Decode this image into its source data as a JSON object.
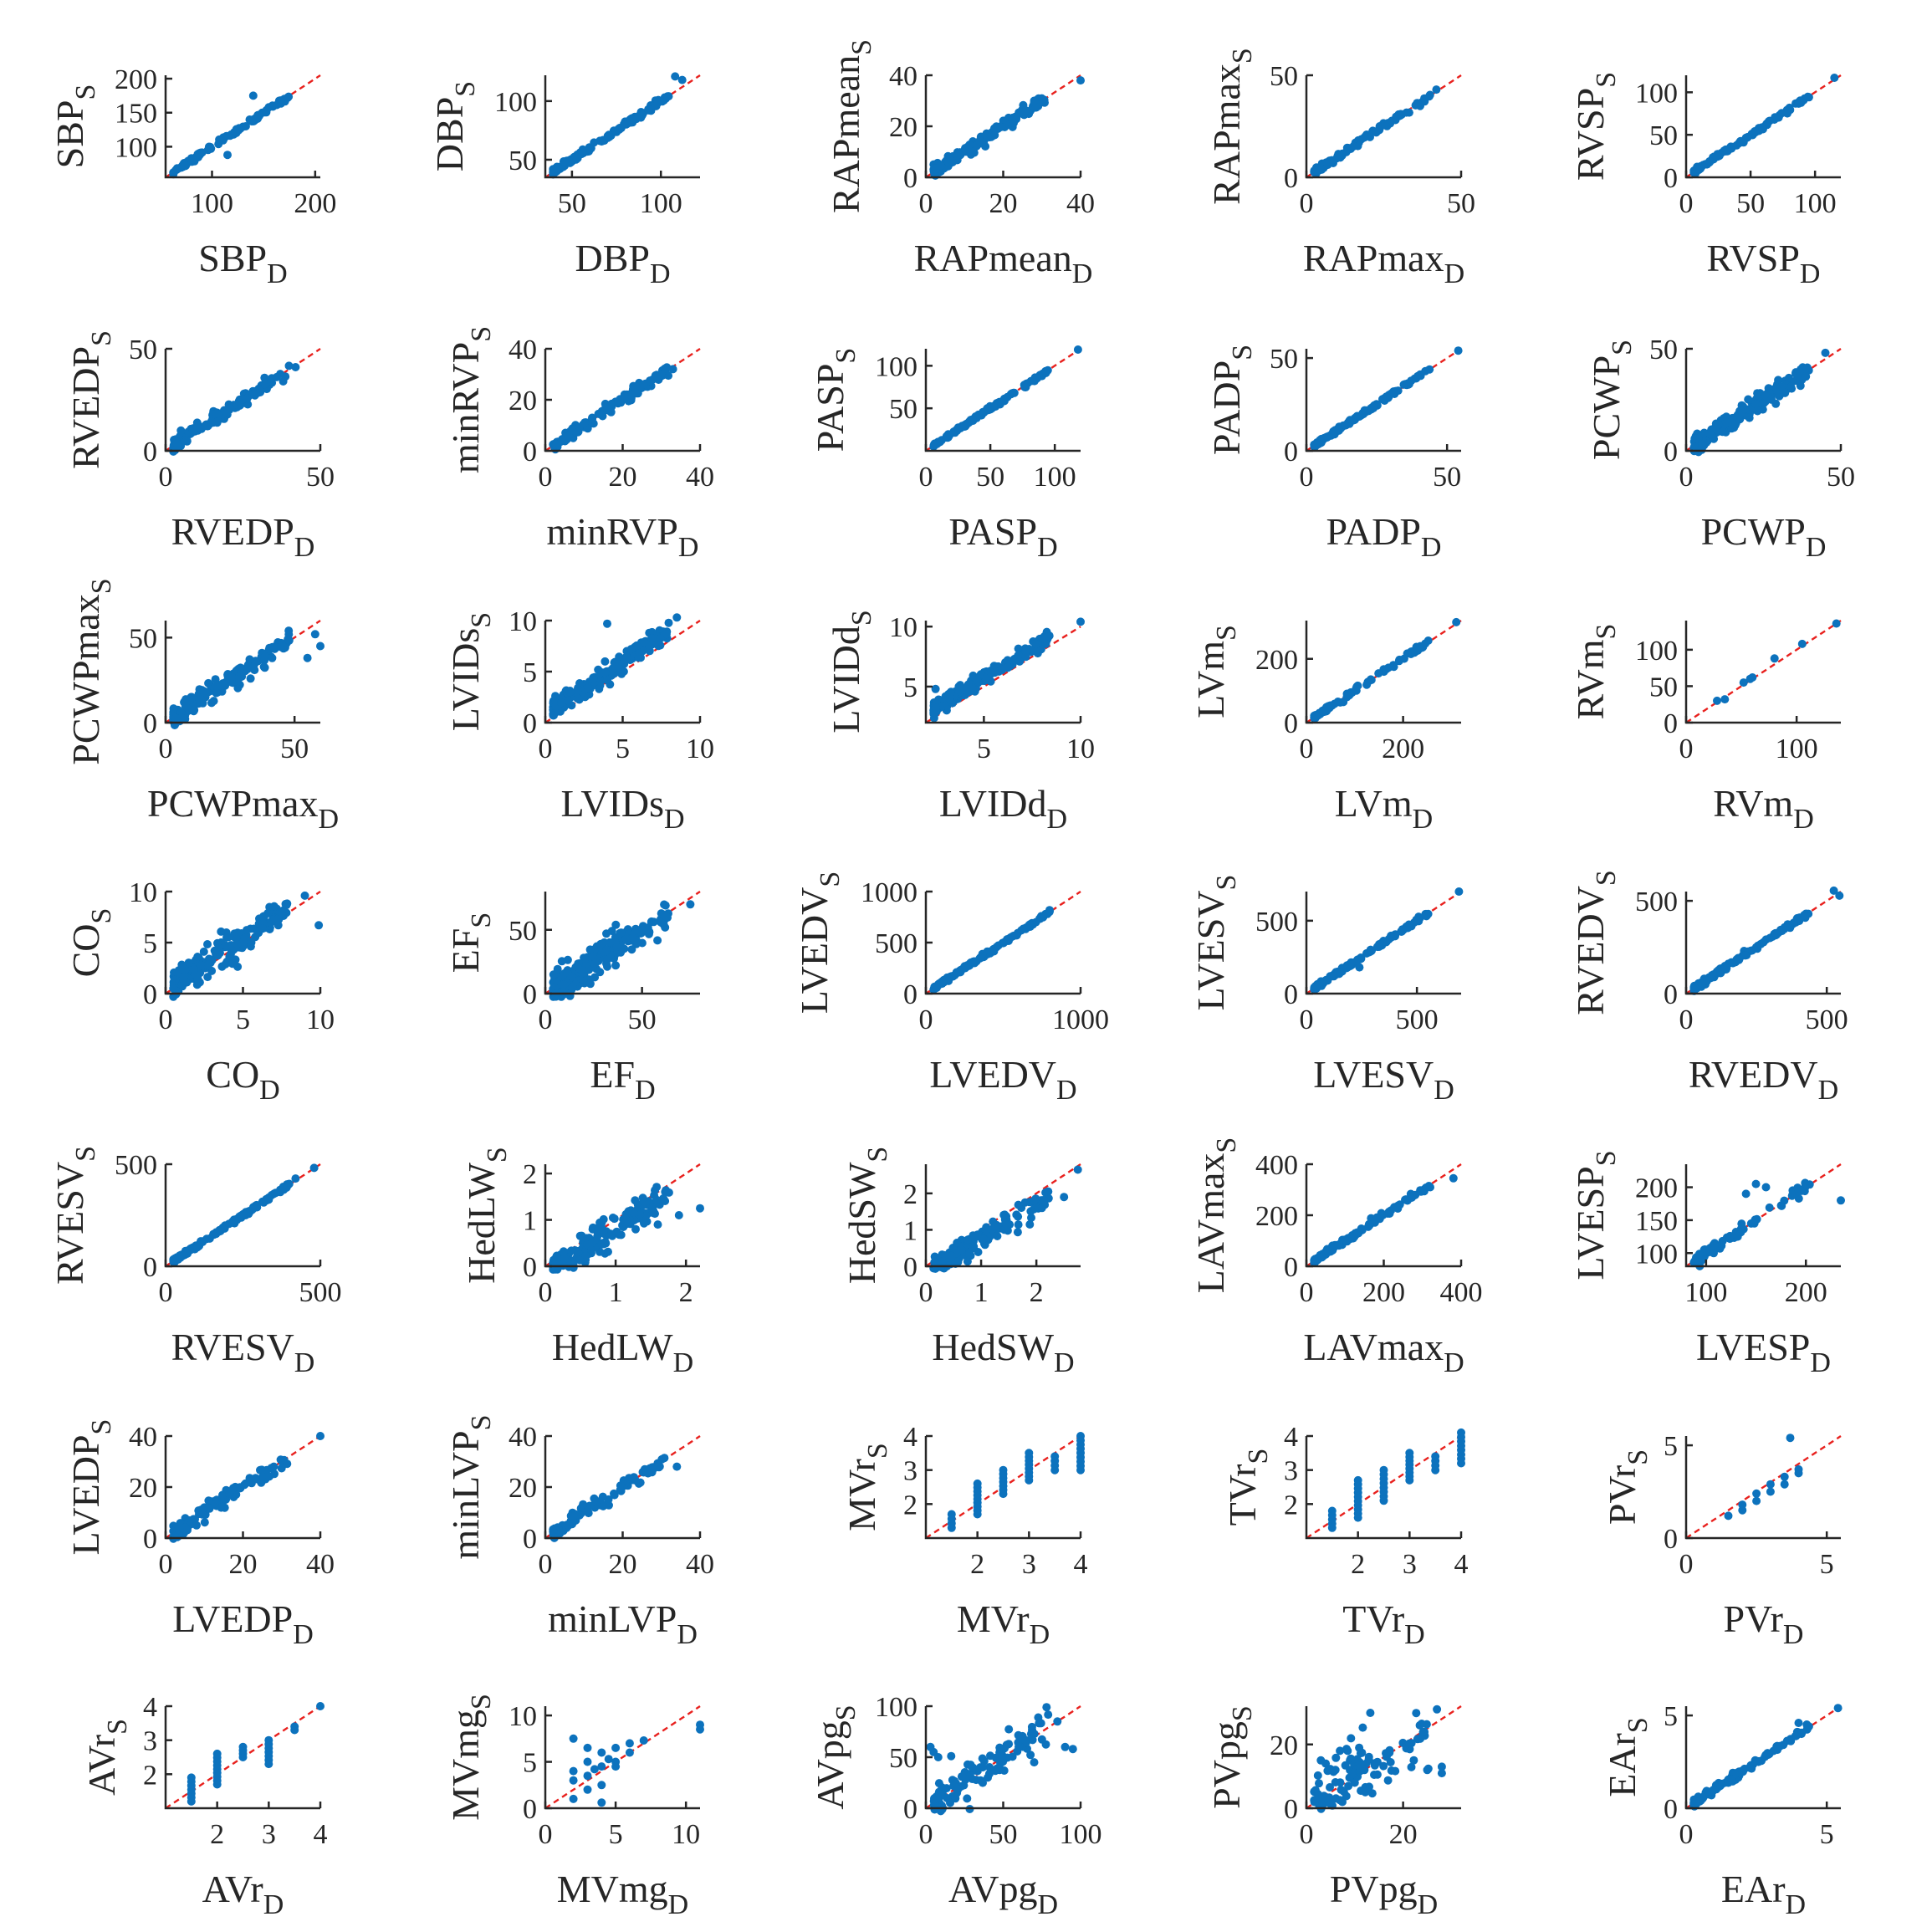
{
  "colors": {
    "points": "#0c72bd",
    "identity_line": "#e8211e",
    "axes": "#262626"
  },
  "chart_data": [
    {
      "type": "scatter",
      "name": "SBP",
      "xlabel": "SBP",
      "ylabel": "SBP",
      "xlim": [
        55,
        205
      ],
      "ylim": [
        55,
        205
      ],
      "xticks": [
        100,
        200
      ],
      "yticks": [
        100,
        150,
        200
      ],
      "n": 90,
      "noise": 0.035,
      "out": [
        [
          140,
          175
        ],
        [
          115,
          88
        ]
      ]
    },
    {
      "type": "scatter",
      "name": "DBP",
      "xlabel": "DBP",
      "ylabel": "DBP",
      "xlim": [
        35,
        122
      ],
      "ylim": [
        35,
        122
      ],
      "xticks": [
        50,
        100
      ],
      "yticks": [
        50,
        100
      ],
      "n": 140,
      "noise": 0.04,
      "out": [
        [
          108,
          121
        ],
        [
          112,
          118
        ]
      ]
    },
    {
      "type": "scatter",
      "name": "RAPmean",
      "xlabel": "RAPmean",
      "ylabel": "RAPmean",
      "xlim": [
        0,
        40
      ],
      "ylim": [
        0,
        40
      ],
      "xticks": [
        0,
        20,
        40
      ],
      "yticks": [
        0,
        20,
        40
      ],
      "n": 150,
      "noise": 0.08,
      "out": [
        [
          40,
          38
        ],
        [
          28,
          30
        ]
      ]
    },
    {
      "type": "scatter",
      "name": "RAPmax",
      "xlabel": "RAPmax",
      "ylabel": "RAPmax",
      "xlim": [
        0,
        50
      ],
      "ylim": [
        0,
        50
      ],
      "xticks": [
        0,
        50
      ],
      "yticks": [
        0,
        50
      ],
      "n": 100,
      "noise": 0.04,
      "out": [
        [
          42,
          43
        ]
      ]
    },
    {
      "type": "scatter",
      "name": "RVSP",
      "xlabel": "RVSP",
      "ylabel": "RVSP",
      "xlim": [
        0,
        120
      ],
      "ylim": [
        0,
        120
      ],
      "xticks": [
        0,
        50,
        100
      ],
      "yticks": [
        0,
        50,
        100
      ],
      "n": 110,
      "noise": 0.03,
      "out": [
        [
          115,
          117
        ]
      ]
    },
    {
      "type": "scatter",
      "name": "RVEDP",
      "xlabel": "RVEDP",
      "ylabel": "RVEDP",
      "xlim": [
        0,
        50
      ],
      "ylim": [
        0,
        50
      ],
      "xticks": [
        0,
        50
      ],
      "yticks": [
        0,
        50
      ],
      "n": 140,
      "noise": 0.09,
      "out": [
        [
          42,
          41
        ],
        [
          38,
          34
        ]
      ]
    },
    {
      "type": "scatter",
      "name": "minRVP",
      "xlabel": "minRVP",
      "ylabel": "minRVP",
      "xlim": [
        0,
        40
      ],
      "ylim": [
        0,
        40
      ],
      "xticks": [
        0,
        20,
        40
      ],
      "yticks": [
        0,
        20,
        40
      ],
      "n": 120,
      "noise": 0.08,
      "out": [
        [
          33,
          32
        ]
      ]
    },
    {
      "type": "scatter",
      "name": "PASP",
      "xlabel": "PASP",
      "ylabel": "PASP",
      "xlim": [
        0,
        120
      ],
      "ylim": [
        0,
        120
      ],
      "xticks": [
        0,
        50,
        100
      ],
      "yticks": [
        50,
        100
      ],
      "n": 110,
      "noise": 0.025,
      "out": [
        [
          118,
          119
        ]
      ]
    },
    {
      "type": "scatter",
      "name": "PADP",
      "xlabel": "PADP",
      "ylabel": "PADP",
      "xlim": [
        0,
        55
      ],
      "ylim": [
        0,
        55
      ],
      "xticks": [
        0,
        50
      ],
      "yticks": [
        0,
        50
      ],
      "n": 120,
      "noise": 0.03,
      "out": [
        [
          54,
          54
        ]
      ]
    },
    {
      "type": "scatter",
      "name": "PCWP",
      "xlabel": "PCWP",
      "ylabel": "PCWP",
      "xlim": [
        0,
        50
      ],
      "ylim": [
        0,
        50
      ],
      "xticks": [
        0,
        50
      ],
      "yticks": [
        0,
        50
      ],
      "n": 200,
      "noise": 0.13,
      "out": [
        [
          45,
          48
        ]
      ]
    },
    {
      "type": "scatter",
      "name": "PCWPmax",
      "xlabel": "PCWPmax",
      "ylabel": "PCWPmax",
      "xlim": [
        0,
        60
      ],
      "ylim": [
        0,
        60
      ],
      "xticks": [
        0,
        50
      ],
      "yticks": [
        0,
        50
      ],
      "n": 180,
      "noise": 0.14,
      "out": [
        [
          60,
          45
        ],
        [
          58,
          52
        ],
        [
          55,
          38
        ]
      ]
    },
    {
      "type": "scatter",
      "name": "LVIDs",
      "xlabel": "LVIDs",
      "ylabel": "LVIDs",
      "xlim": [
        0,
        10
      ],
      "ylim": [
        0,
        10
      ],
      "xticks": [
        0,
        5,
        10
      ],
      "yticks": [
        0,
        5,
        10
      ],
      "n": 230,
      "noise": 0.13,
      "bias": 0.9,
      "out": [
        [
          4,
          9.7
        ],
        [
          8.5,
          10.3
        ]
      ]
    },
    {
      "type": "scatter",
      "name": "LVIDd",
      "xlabel": "LVIDd",
      "ylabel": "LVIDd",
      "xlim": [
        2,
        10
      ],
      "ylim": [
        2,
        10.5
      ],
      "xticks": [
        5,
        10
      ],
      "yticks": [
        5,
        10
      ],
      "n": 260,
      "noise": 0.11,
      "bias": 0.7,
      "out": [
        [
          2.5,
          4.8
        ],
        [
          10,
          10.4
        ]
      ]
    },
    {
      "type": "scatter",
      "name": "LVm",
      "xlabel": "LVm",
      "ylabel": "LVm",
      "xlim": [
        0,
        320
      ],
      "ylim": [
        0,
        320
      ],
      "xticks": [
        0,
        200
      ],
      "yticks": [
        0,
        200
      ],
      "n": 80,
      "noise": 0.035,
      "out": [
        [
          310,
          315
        ]
      ]
    },
    {
      "type": "scatter",
      "name": "RVm",
      "xlabel": "RVm",
      "ylabel": "RVm",
      "xlim": [
        0,
        140
      ],
      "ylim": [
        0,
        140
      ],
      "xticks": [
        0,
        100
      ],
      "yticks": [
        0,
        50,
        100
      ],
      "n": 0,
      "noise": 0,
      "out": [
        [
          28,
          30
        ],
        [
          35,
          32
        ],
        [
          52,
          55
        ],
        [
          58,
          60
        ],
        [
          60,
          62
        ],
        [
          80,
          88
        ],
        [
          105,
          108
        ],
        [
          136,
          136
        ]
      ]
    },
    {
      "type": "scatter",
      "name": "CO",
      "xlabel": "CO",
      "ylabel": "CO",
      "xlim": [
        0,
        10
      ],
      "ylim": [
        0,
        10
      ],
      "xticks": [
        0,
        5,
        10
      ],
      "yticks": [
        0,
        5,
        10
      ],
      "n": 220,
      "noise": 0.2,
      "bias": 0.3,
      "out": [
        [
          9.9,
          6.7
        ],
        [
          9,
          9.6
        ]
      ]
    },
    {
      "type": "scatter",
      "name": "EF",
      "xlabel": "EF",
      "ylabel": "EF",
      "xlim": [
        0,
        80
      ],
      "ylim": [
        0,
        80
      ],
      "xticks": [
        0,
        50
      ],
      "yticks": [
        0,
        50
      ],
      "n": 280,
      "noise": 0.22,
      "out": [
        [
          75,
          70
        ]
      ]
    },
    {
      "type": "scatter",
      "name": "LVEDV",
      "xlabel": "LVEDV",
      "ylabel": "LVEDV",
      "xlim": [
        0,
        1000
      ],
      "ylim": [
        0,
        1000
      ],
      "xticks": [
        0,
        1000
      ],
      "yticks": [
        0,
        500,
        1000
      ],
      "n": 120,
      "noise": 0.025,
      "out": [
        [
          800,
          810
        ]
      ]
    },
    {
      "type": "scatter",
      "name": "LVESV",
      "xlabel": "LVESV",
      "ylabel": "LVESV",
      "xlim": [
        0,
        700
      ],
      "ylim": [
        0,
        700
      ],
      "xticks": [
        0,
        500
      ],
      "yticks": [
        0,
        500
      ],
      "n": 130,
      "noise": 0.03,
      "out": [
        [
          690,
          700
        ],
        [
          240,
          180
        ]
      ]
    },
    {
      "type": "scatter",
      "name": "RVEDV",
      "xlabel": "RVEDV",
      "ylabel": "RVEDV",
      "xlim": [
        0,
        550
      ],
      "ylim": [
        0,
        550
      ],
      "xticks": [
        0,
        500
      ],
      "yticks": [
        0,
        500
      ],
      "n": 140,
      "noise": 0.035,
      "out": [
        [
          525,
          555
        ],
        [
          545,
          528
        ]
      ]
    },
    {
      "type": "scatter",
      "name": "RVESV",
      "xlabel": "RVESV",
      "ylabel": "RVESV",
      "xlim": [
        0,
        500
      ],
      "ylim": [
        0,
        500
      ],
      "xticks": [
        0,
        500
      ],
      "yticks": [
        0,
        500
      ],
      "n": 120,
      "noise": 0.03,
      "out": [
        [
          420,
          430
        ],
        [
          480,
          482
        ]
      ]
    },
    {
      "type": "scatter",
      "name": "HedLW",
      "xlabel": "HedLW",
      "ylabel": "HedLW",
      "xlim": [
        0,
        2.2
      ],
      "ylim": [
        0,
        2.2
      ],
      "xticks": [
        0,
        1,
        2
      ],
      "yticks": [
        0,
        1,
        2
      ],
      "n": 200,
      "noise": 0.2,
      "bias": -0.2,
      "out": [
        [
          2.2,
          1.25
        ],
        [
          1.6,
          0.9
        ],
        [
          1.9,
          1.1
        ]
      ]
    },
    {
      "type": "scatter",
      "name": "HedSW",
      "xlabel": "HedSW",
      "ylabel": "HedSW",
      "xlim": [
        0,
        2.8
      ],
      "ylim": [
        0,
        2.8
      ],
      "xticks": [
        0,
        1,
        2
      ],
      "yticks": [
        0,
        1,
        2
      ],
      "n": 200,
      "noise": 0.16,
      "bias": -0.25,
      "out": [
        [
          2.75,
          2.65
        ],
        [
          2.5,
          1.9
        ],
        [
          2.1,
          1.6
        ]
      ]
    },
    {
      "type": "scatter",
      "name": "LAVmax",
      "xlabel": "LAVmax",
      "ylabel": "LAVmax",
      "xlim": [
        0,
        400
      ],
      "ylim": [
        0,
        400
      ],
      "xticks": [
        0,
        200,
        400
      ],
      "yticks": [
        0,
        200,
        400
      ],
      "n": 110,
      "noise": 0.04,
      "out": [
        [
          380,
          345
        ],
        [
          320,
          310
        ]
      ]
    },
    {
      "type": "scatter",
      "name": "LVESP",
      "xlabel": "LVESP",
      "ylabel": "LVESP",
      "xlim": [
        80,
        235
      ],
      "ylim": [
        80,
        235
      ],
      "xticks": [
        100,
        200
      ],
      "yticks": [
        100,
        150,
        200
      ],
      "n": 70,
      "noise": 0.08,
      "out": [
        [
          150,
          205
        ],
        [
          160,
          200
        ],
        [
          235,
          180
        ],
        [
          140,
          190
        ]
      ]
    },
    {
      "type": "scatter",
      "name": "LVEDP",
      "xlabel": "LVEDP",
      "ylabel": "LVEDP",
      "xlim": [
        0,
        40
      ],
      "ylim": [
        0,
        40
      ],
      "xticks": [
        0,
        20,
        40
      ],
      "yticks": [
        0,
        20,
        40
      ],
      "n": 90,
      "noise": 0.12,
      "out": [
        [
          40,
          40
        ],
        [
          10,
          12
        ],
        [
          8,
          5
        ]
      ]
    },
    {
      "type": "scatter",
      "name": "minLVP",
      "xlabel": "minLVP",
      "ylabel": "minLVP",
      "xlim": [
        0,
        40
      ],
      "ylim": [
        0,
        40
      ],
      "xticks": [
        0,
        20,
        40
      ],
      "yticks": [
        0,
        20,
        40
      ],
      "n": 90,
      "noise": 0.1,
      "out": [
        [
          34,
          28
        ]
      ]
    },
    {
      "type": "scatter",
      "name": "MVr",
      "xlabel": "MVr",
      "ylabel": "MVr",
      "xlim": [
        1,
        4
      ],
      "ylim": [
        1,
        4
      ],
      "xticks": [
        2,
        3,
        4
      ],
      "yticks": [
        2,
        3,
        4
      ],
      "n": 0,
      "noise": 0,
      "grades": [
        [
          1.5,
          1.3,
          1.7
        ],
        [
          2,
          1.7,
          2.6
        ],
        [
          2.5,
          2.3,
          3
        ],
        [
          3,
          2.7,
          3.5
        ],
        [
          3.5,
          3,
          3.4
        ],
        [
          4,
          3,
          4
        ]
      ]
    },
    {
      "type": "scatter",
      "name": "TVr",
      "xlabel": "TVr",
      "ylabel": "TVr",
      "xlim": [
        1,
        4
      ],
      "ylim": [
        1,
        4
      ],
      "xticks": [
        2,
        3,
        4
      ],
      "yticks": [
        2,
        3,
        4
      ],
      "n": 0,
      "noise": 0,
      "grades": [
        [
          1.5,
          1.3,
          1.8
        ],
        [
          2,
          1.6,
          2.7
        ],
        [
          2.5,
          2.1,
          3
        ],
        [
          3,
          2.7,
          3.5
        ],
        [
          3.5,
          3,
          3.4
        ],
        [
          4,
          3.2,
          4.1
        ]
      ]
    },
    {
      "type": "scatter",
      "name": "PVr",
      "xlabel": "PVr",
      "ylabel": "PVr",
      "xlim": [
        0,
        5.5
      ],
      "ylim": [
        0,
        5.5
      ],
      "xticks": [
        0,
        5
      ],
      "yticks": [
        0,
        5
      ],
      "n": 0,
      "noise": 0,
      "out": [
        [
          1.5,
          1.2
        ],
        [
          2,
          1.5
        ],
        [
          2,
          1.8
        ],
        [
          2.5,
          2
        ],
        [
          2.5,
          2.4
        ],
        [
          3,
          2.5
        ],
        [
          3,
          2.9
        ],
        [
          3.5,
          2.9
        ],
        [
          3.5,
          3.3
        ],
        [
          4,
          3.5
        ],
        [
          4,
          3.7
        ],
        [
          3.7,
          5.4
        ]
      ]
    },
    {
      "type": "scatter",
      "name": "AVr",
      "xlabel": "AVr",
      "ylabel": "AVr",
      "xlim": [
        1,
        4
      ],
      "ylim": [
        1,
        4
      ],
      "xticks": [
        2,
        3,
        4
      ],
      "yticks": [
        2,
        3,
        4
      ],
      "n": 0,
      "noise": 0,
      "grades": [
        [
          1.5,
          1.2,
          1.9
        ],
        [
          2,
          1.7,
          2.6
        ],
        [
          2.5,
          2.5,
          2.8
        ],
        [
          3,
          2.3,
          3
        ]
      ],
      "out": [
        [
          3.5,
          3.3
        ],
        [
          3.5,
          3.4
        ],
        [
          4,
          4
        ]
      ]
    },
    {
      "type": "scatter",
      "name": "MVmg",
      "xlabel": "MVmg",
      "ylabel": "MVmg",
      "xlim": [
        0,
        11
      ],
      "ylim": [
        0,
        11
      ],
      "xticks": [
        0,
        5,
        10
      ],
      "yticks": [
        0,
        5,
        10
      ],
      "n": 0,
      "noise": 0,
      "out": [
        [
          2,
          7.5
        ],
        [
          2,
          3
        ],
        [
          2,
          4
        ],
        [
          2,
          1
        ],
        [
          3,
          3.5
        ],
        [
          3,
          5
        ],
        [
          3,
          6.5
        ],
        [
          3,
          2
        ],
        [
          4,
          4.5
        ],
        [
          4,
          6
        ],
        [
          4,
          0.6
        ],
        [
          4,
          2.5
        ],
        [
          5,
          5
        ],
        [
          5,
          6.5
        ],
        [
          5,
          4.5
        ],
        [
          6,
          6
        ],
        [
          6,
          7
        ],
        [
          7,
          7.3
        ],
        [
          11,
          8.5
        ],
        [
          11,
          9
        ],
        [
          3.5,
          4.2
        ],
        [
          4.5,
          5.3
        ]
      ]
    },
    {
      "type": "scatter",
      "name": "AVpg",
      "xlabel": "AVpg",
      "ylabel": "AVpg",
      "xlim": [
        0,
        100
      ],
      "ylim": [
        0,
        100
      ],
      "xticks": [
        0,
        50,
        100
      ],
      "yticks": [
        0,
        50,
        100
      ],
      "n": 120,
      "noise": 0.3,
      "bias": 0,
      "out": [
        [
          5,
          55
        ],
        [
          8,
          50
        ],
        [
          3,
          60
        ],
        [
          90,
          60
        ],
        [
          95,
          58
        ],
        [
          70,
          45
        ],
        [
          85,
          85
        ],
        [
          60,
          60
        ],
        [
          40,
          30
        ],
        [
          30,
          40
        ]
      ]
    },
    {
      "type": "scatter",
      "name": "PVpg",
      "xlabel": "PVpg",
      "ylabel": "PVpg",
      "xlim": [
        0,
        32
      ],
      "ylim": [
        0,
        32
      ],
      "xticks": [
        0,
        20
      ],
      "yticks": [
        0,
        20
      ],
      "n": 110,
      "noise": 0.5,
      "bias": 0,
      "out": [
        [
          27,
          31
        ],
        [
          28,
          11
        ],
        [
          28,
          13
        ],
        [
          25,
          12
        ],
        [
          12,
          12
        ],
        [
          10,
          8
        ],
        [
          3,
          15
        ],
        [
          4,
          14
        ],
        [
          6,
          12
        ]
      ]
    },
    {
      "type": "scatter",
      "name": "EAr",
      "xlabel": "EAr",
      "ylabel": "EAr",
      "xlim": [
        0,
        5.5
      ],
      "ylim": [
        0,
        5.5
      ],
      "xticks": [
        0,
        5
      ],
      "yticks": [
        0,
        5
      ],
      "n": 110,
      "noise": 0.05,
      "out": [
        [
          5.4,
          5.4
        ],
        [
          4,
          4.6
        ]
      ]
    }
  ],
  "subscripts": {
    "x": "D",
    "y": "S"
  }
}
